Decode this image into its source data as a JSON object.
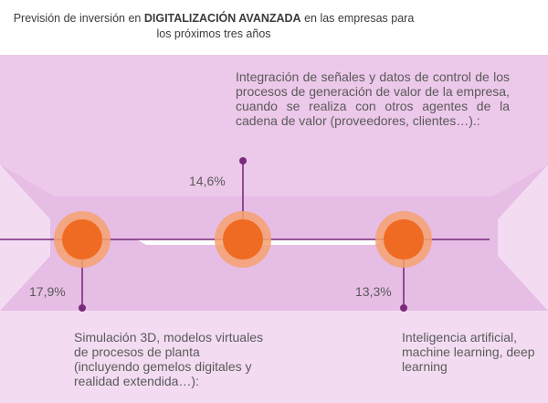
{
  "header": {
    "title_part1": "Previsión de inversión en ",
    "title_bold": "DIGITALIZACIÓN AVANZADA",
    "title_part2": " en las empresas para los próximos tres años"
  },
  "colors": {
    "panel": "#efd3ee",
    "panel_band": "#e3b2e0",
    "line": "#7a2a7c",
    "circle_fill": "#ef6b23",
    "circle_ring": "#f4a270"
  },
  "chart_data": {
    "type": "bar",
    "title": "Previsión de inversión en DIGITALIZACIÓN AVANZADA en las empresas para los próximos tres años",
    "categories": [
      "Simulación 3D, modelos virtuales de procesos de planta (incluyendo gemelos digitales y realidad extendida…):",
      "Integración de señales y datos de control de los procesos de generación de valor de la empresa, cuando se realiza con otros agentes de la cadena de valor (proveedores, clientes…).:",
      "Inteligencia artificial, machine learning, deep learning"
    ],
    "values": [
      17.9,
      14.6,
      13.3
    ],
    "value_labels": [
      "17,9%",
      "14,6%",
      "13,3%"
    ],
    "unit": "%"
  }
}
